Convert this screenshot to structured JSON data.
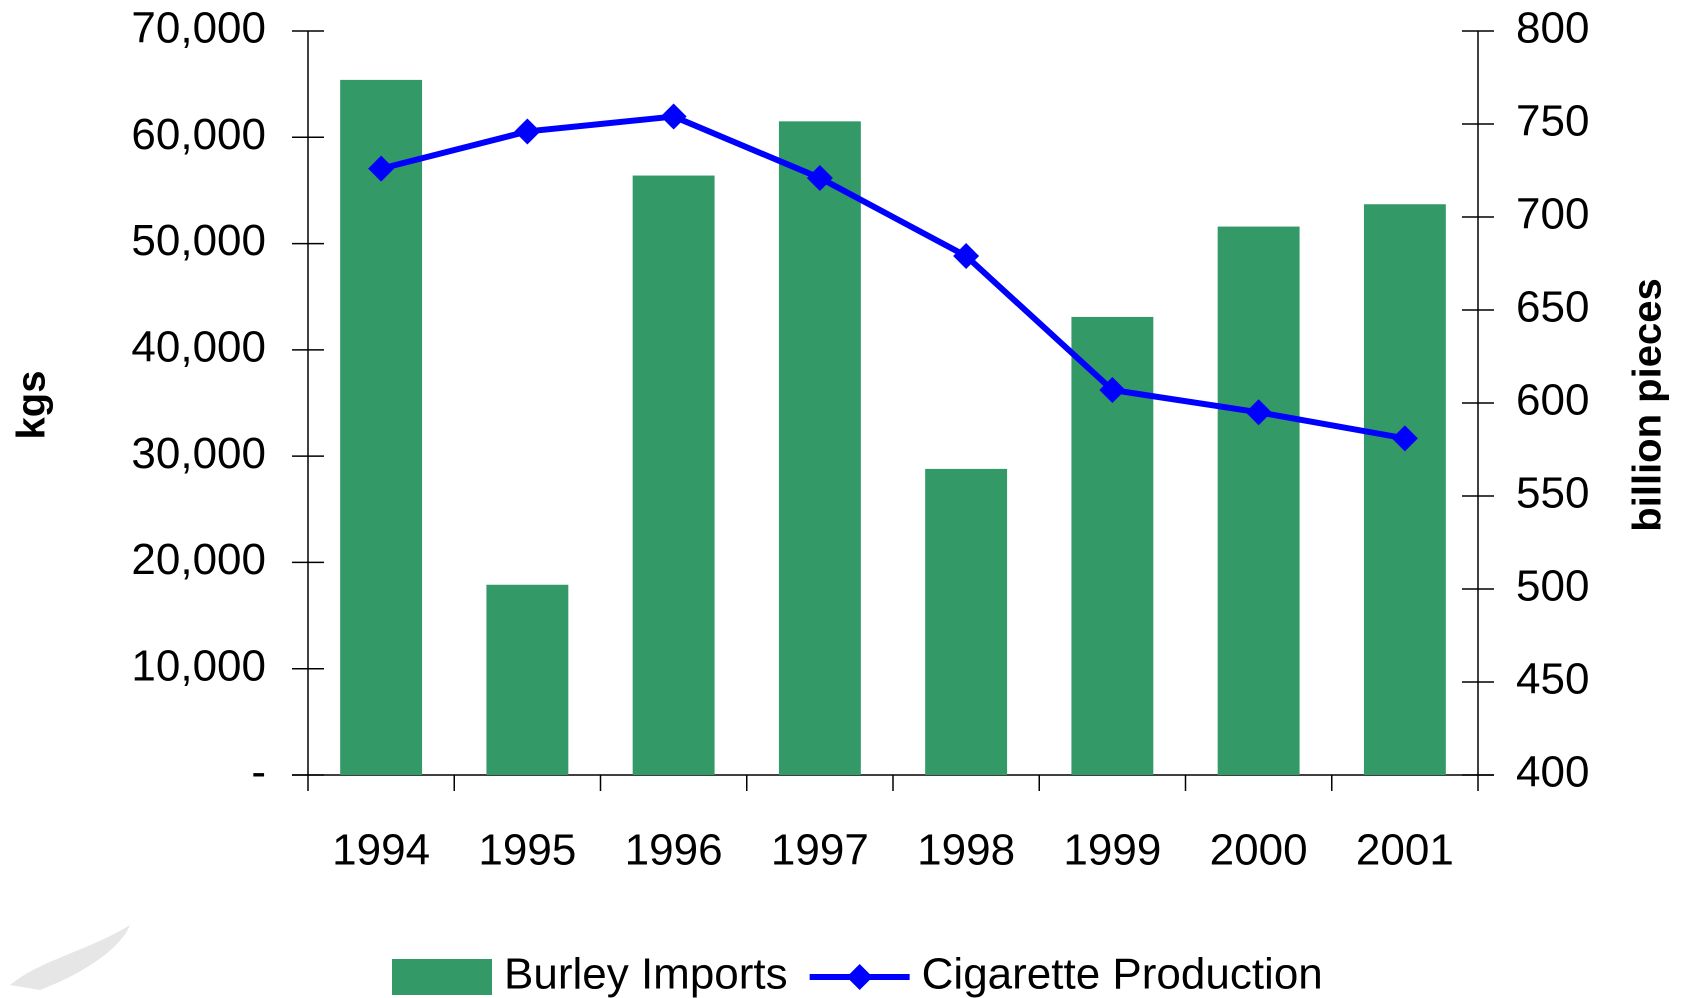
{
  "chart_data": {
    "type": "bar-line",
    "categories": [
      "1994",
      "1995",
      "1996",
      "1997",
      "1998",
      "1999",
      "2000",
      "2001"
    ],
    "series": [
      {
        "name": "Burley Imports",
        "type": "bar",
        "color": "#339966",
        "axis": "y",
        "values": [
          65400,
          17900,
          56400,
          61500,
          28800,
          43100,
          51600,
          53700
        ]
      },
      {
        "name": "Cigarette Production",
        "type": "line",
        "color": "#0000ff",
        "axis": "y2",
        "values": [
          726,
          746,
          754,
          721,
          679,
          607,
          595,
          581
        ]
      }
    ],
    "ylabel": "kgs",
    "y2label": "billion pieces",
    "ylim": [
      0,
      70000
    ],
    "yticks": [
      {
        "value": 0,
        "label": "-"
      },
      {
        "value": 10000,
        "label": "10,000"
      },
      {
        "value": 20000,
        "label": "20,000"
      },
      {
        "value": 30000,
        "label": "30,000"
      },
      {
        "value": 40000,
        "label": "40,000"
      },
      {
        "value": 50000,
        "label": "50,000"
      },
      {
        "value": 60000,
        "label": "60,000"
      },
      {
        "value": 70000,
        "label": "70,000"
      }
    ],
    "y2lim": [
      400,
      800
    ],
    "y2ticks": [
      400,
      450,
      500,
      550,
      600,
      650,
      700,
      750,
      800
    ],
    "grid": false,
    "legend": "bottom"
  }
}
